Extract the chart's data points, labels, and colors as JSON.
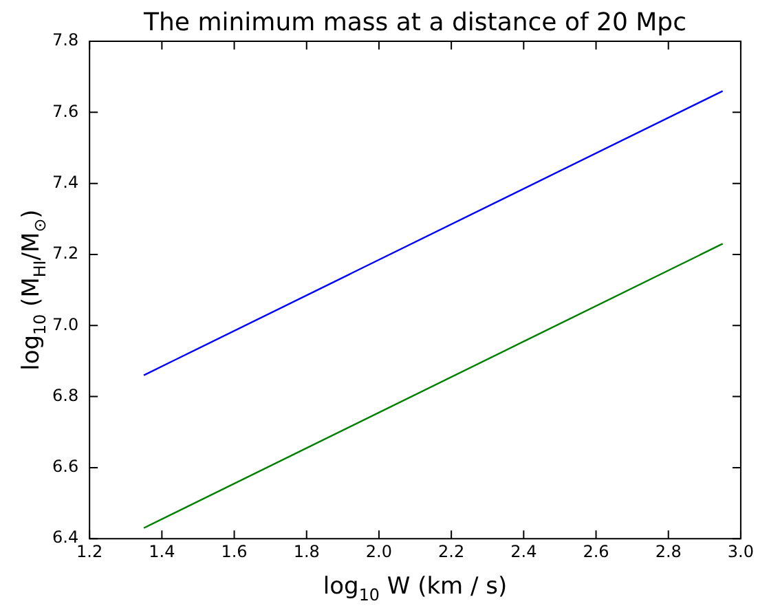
{
  "chart_data": {
    "type": "line",
    "title": "The minimum mass at a distance of 20 Mpc",
    "xlabel": "log$_{10}$ W (km / s)",
    "ylabel": "log$_{10}$ (M$_{HI}$/M$_{⊙}$)",
    "x": [
      1.35,
      2.95
    ],
    "series": [
      {
        "color": "#0000ff",
        "values": [
          6.86,
          7.66
        ]
      },
      {
        "color": "#008000",
        "values": [
          6.43,
          7.23
        ]
      }
    ],
    "xlim": [
      1.2,
      3.0
    ],
    "xticks": [
      1.2,
      1.4,
      1.6,
      1.8,
      {
        "value": 2,
        "label": "2.0"
      },
      2.2,
      2.4,
      2.6,
      2.8,
      {
        "value": 3,
        "label": "3.0"
      }
    ],
    "ylim": [
      6.4,
      7.8
    ],
    "yticks": [
      6.4,
      6.6,
      6.8,
      {
        "value": 7,
        "label": "7.0"
      },
      7.2,
      7.4,
      7.6,
      7.8
    ],
    "grid": false,
    "legend": false,
    "marker": "none",
    "line_style": "solid"
  }
}
